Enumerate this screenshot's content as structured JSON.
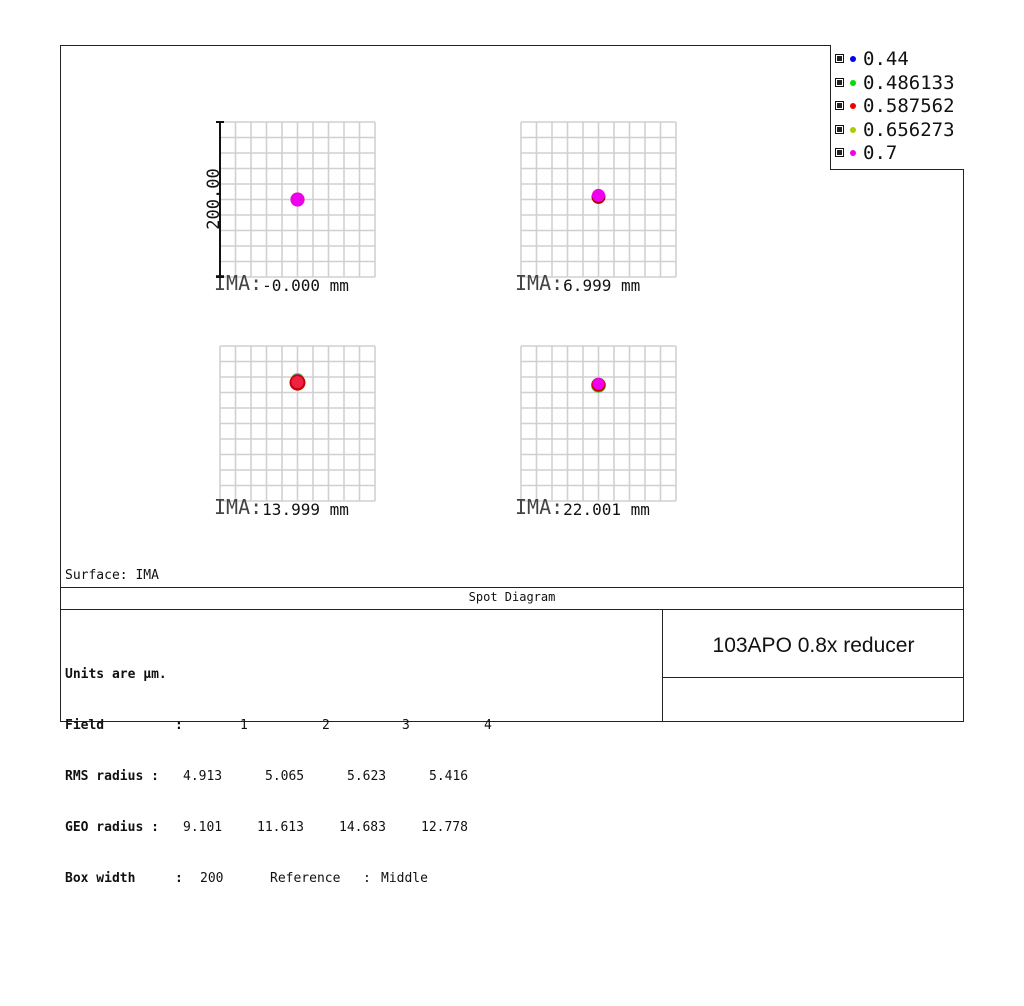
{
  "chart_data": {
    "type": "scatter",
    "title": "Spot Diagram",
    "surface_label": "Surface: IMA",
    "scale_label": "200.00",
    "legend": [
      {
        "label": "0.44",
        "color": "#0000ee"
      },
      {
        "label": "0.486133",
        "color": "#00dd00"
      },
      {
        "label": "0.587562",
        "color": "#ee0000"
      },
      {
        "label": "0.656273",
        "color": "#aacc00"
      },
      {
        "label": "0.7",
        "color": "#ee00ee"
      }
    ],
    "fields": [
      {
        "label": "IMA:",
        "value": "-0.000 mm",
        "spot_offset": [
          0,
          0
        ],
        "spots": [
          {
            "color": "#ee0000",
            "dx": 0,
            "dy": 0,
            "r": 7
          },
          {
            "color": "#ee00ee",
            "dx": 0,
            "dy": 0,
            "r": 7
          }
        ]
      },
      {
        "label": "IMA:",
        "value": "6.999 mm",
        "spot_offset": [
          0,
          -4
        ],
        "spots": [
          {
            "color": "#aa0000",
            "dx": 0,
            "dy": 0.5,
            "r": 7
          },
          {
            "color": "#ee00ee",
            "dx": 0,
            "dy": -1,
            "r": 6.5
          }
        ]
      },
      {
        "label": "IMA:",
        "value": "13.999 mm",
        "spot_offset": [
          0,
          -54
        ],
        "spots": [
          {
            "color": "#44cc44",
            "dx": 0,
            "dy": -1.5,
            "r": 7
          },
          {
            "color": "#ee00ee",
            "dx": 0,
            "dy": -1,
            "r": 6.5
          },
          {
            "color": "#cc0000",
            "dx": 0,
            "dy": 1,
            "r": 8
          },
          {
            "color": "#ee2244",
            "dx": 0,
            "dy": 0.5,
            "r": 6
          }
        ]
      },
      {
        "label": "IMA:",
        "value": "22.001 mm",
        "spot_offset": [
          0,
          -50
        ],
        "spots": [
          {
            "color": "#44cc44",
            "dx": 0,
            "dy": 0.5,
            "r": 7.5
          },
          {
            "color": "#cc0000",
            "dx": 0,
            "dy": 0,
            "r": 7
          },
          {
            "color": "#ee00ee",
            "dx": 0,
            "dy": -1,
            "r": 6
          }
        ]
      }
    ],
    "box_width": 200,
    "units": "µm"
  },
  "info": {
    "units_line": "Units are µm.",
    "field_label": "Field",
    "field_sep": ":",
    "field_values": [
      "1",
      "2",
      "3",
      "4"
    ],
    "rms_label": "RMS radius :",
    "rms_values": [
      "4.913",
      "5.065",
      "5.623",
      "5.416"
    ],
    "geo_label": "GEO radius :",
    "geo_values": [
      "9.101",
      "11.613",
      "14.683",
      "12.778"
    ],
    "box_label": "Box width",
    "box_sep": ":",
    "box_value": "200",
    "reference_label": "Reference",
    "reference_sep": ":",
    "reference_value": "Middle"
  },
  "project_title": "103APO 0.8x reducer"
}
